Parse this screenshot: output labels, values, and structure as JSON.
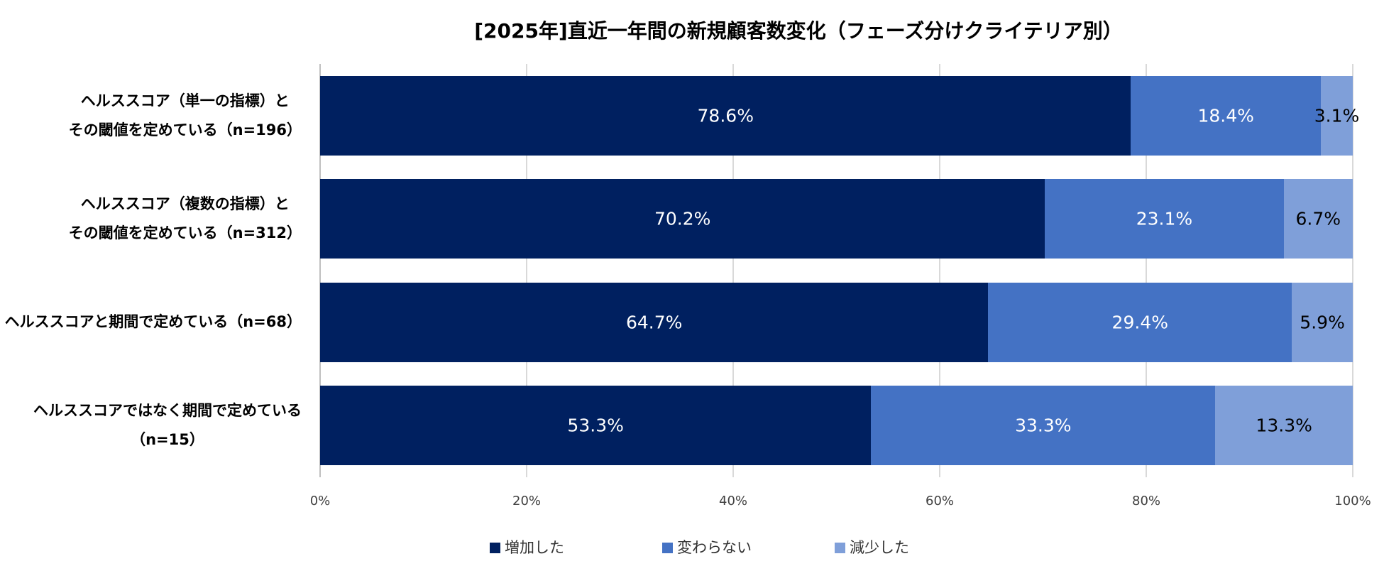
{
  "chart_data": {
    "type": "bar",
    "orientation": "horizontal",
    "stacked": true,
    "title": "[2025年]直近一年間の新規顧客数変化（フェーズ分けクライテリア別）",
    "categories": [
      [
        "ヘルススコア（単一の指標）と",
        "その閾値を定めている（n=196）"
      ],
      [
        "ヘルススコア（複数の指標）と",
        "その閾値を定めている（n=312）"
      ],
      [
        "ヘルススコアと期間で定めている（n=68）"
      ],
      [
        "ヘルススコアではなく期間で定めている",
        "（n=15）"
      ]
    ],
    "series": [
      {
        "name": "増加した",
        "values": [
          78.6,
          70.2,
          64.7,
          53.3
        ],
        "color": "#002060",
        "label_color": "#ffffff"
      },
      {
        "name": "変わらない",
        "values": [
          18.4,
          23.1,
          29.4,
          33.3
        ],
        "color": "#4472C4",
        "label_color": "#ffffff"
      },
      {
        "name": "減少した",
        "values": [
          3.1,
          6.7,
          5.9,
          13.3
        ],
        "color": "#7F9FD9",
        "label_color": "#000000"
      }
    ],
    "value_unit": "%",
    "xlim": [
      0,
      100
    ],
    "xticks": [
      0,
      20,
      40,
      60,
      80,
      100
    ],
    "xtick_labels": [
      "0%",
      "20%",
      "40%",
      "60%",
      "80%",
      "100%"
    ],
    "grid": true,
    "legend": "bottom"
  }
}
